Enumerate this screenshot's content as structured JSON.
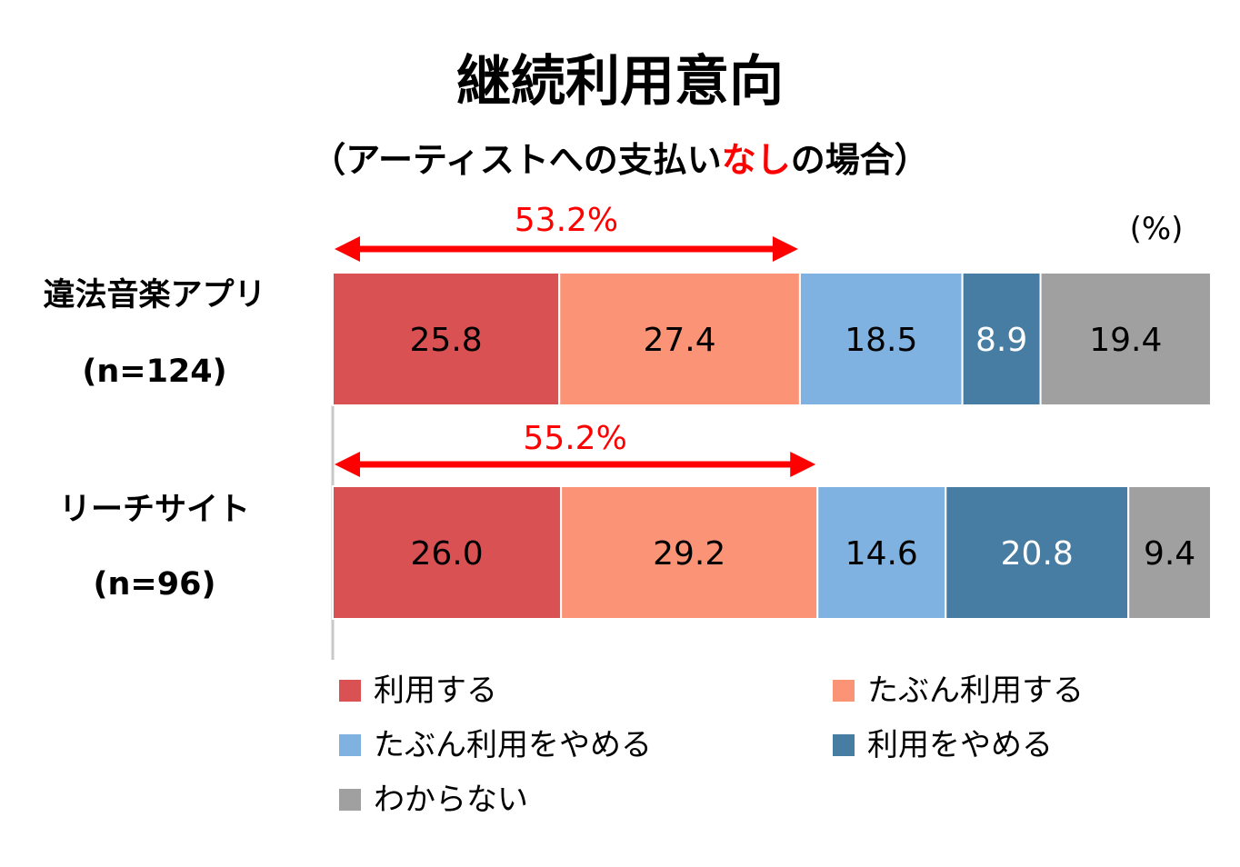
{
  "title": "継続利用意向",
  "subtitle": {
    "prefix": "（アーティストへの支払い",
    "highlight": "なし",
    "suffix": "の場合）"
  },
  "unit_label": "(%)",
  "colors": {
    "highlight": "#ff0000",
    "arrow": "#ff0000",
    "axis": "#c8c8c8"
  },
  "chart_data": {
    "type": "bar",
    "orientation": "horizontal",
    "stacked": true,
    "xlim": [
      0,
      100
    ],
    "unit": "(%)",
    "categories": [
      {
        "name": "違法音楽アプリ",
        "n": "(n=124)"
      },
      {
        "name": "リーチサイト",
        "n": "(n=96)"
      }
    ],
    "series": [
      {
        "name": "利用する",
        "color": "#d95153",
        "text_color": "#000000",
        "values": [
          25.8,
          26.0
        ],
        "labels": [
          "25.8",
          "26.0"
        ]
      },
      {
        "name": "たぶん利用する",
        "color": "#fb9476",
        "text_color": "#000000",
        "values": [
          27.4,
          29.2
        ],
        "labels": [
          "27.4",
          "29.2"
        ]
      },
      {
        "name": "たぶん利用をやめる",
        "color": "#7fb2e0",
        "text_color": "#000000",
        "values": [
          18.5,
          14.6
        ],
        "labels": [
          "18.5",
          "14.6"
        ]
      },
      {
        "name": "利用をやめる",
        "color": "#477da3",
        "text_color": "#ffffff",
        "values": [
          8.9,
          20.8
        ],
        "labels": [
          "8.9",
          "20.8"
        ]
      },
      {
        "name": "わからない",
        "color": "#a0a0a0",
        "text_color": "#000000",
        "values": [
          19.4,
          9.4
        ],
        "labels": [
          "19.4",
          "9.4"
        ]
      }
    ],
    "annotations": [
      {
        "category": "違法音楽アプリ",
        "label": "53.2%",
        "value": 53.2
      },
      {
        "category": "リーチサイト",
        "label": "55.2%",
        "value": 55.2
      }
    ],
    "legend": {
      "position": "bottom",
      "columns": 2
    }
  }
}
